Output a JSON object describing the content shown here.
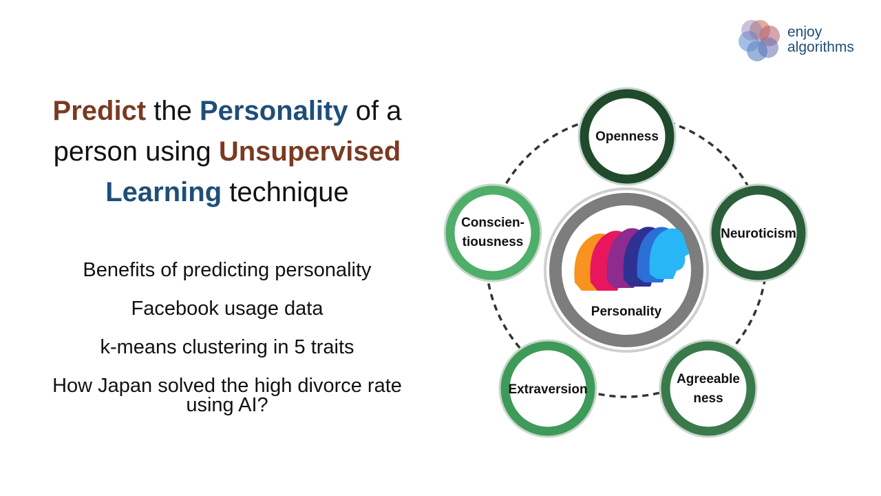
{
  "brand": {
    "line1": "enjoy",
    "line2": "algorithms"
  },
  "title": {
    "w1": "Predict",
    "w2": " the ",
    "w3": "Personality",
    "w4": " of a person using ",
    "w5": "Unsupervised",
    "w6": "Learning",
    "w7": " technique"
  },
  "points": [
    "Benefits of predicting personality",
    "Facebook usage data",
    "k-means clustering in 5 traits",
    "How Japan solved the high divorce rate using AI?"
  ],
  "diagram": {
    "center_label": "Personality",
    "traits": {
      "openness": "Openness",
      "neuroticism": "Neuroticism",
      "agreeableness_1": "Agreeable",
      "agreeableness_2": "ness",
      "extraversion": "Extraversion",
      "conscientiousness_1": "Conscien-",
      "conscientiousness_2": "tiousness"
    },
    "colors": {
      "ring_dark": "#1f4a2c",
      "ring_light": "#4fae6a",
      "center_ring": "#7d7d7d",
      "dash": "#333333",
      "faces": [
        "#f7931e",
        "#e8175d",
        "#8e2b8e",
        "#2e3192",
        "#2b6fd6",
        "#29b6f6"
      ]
    }
  }
}
